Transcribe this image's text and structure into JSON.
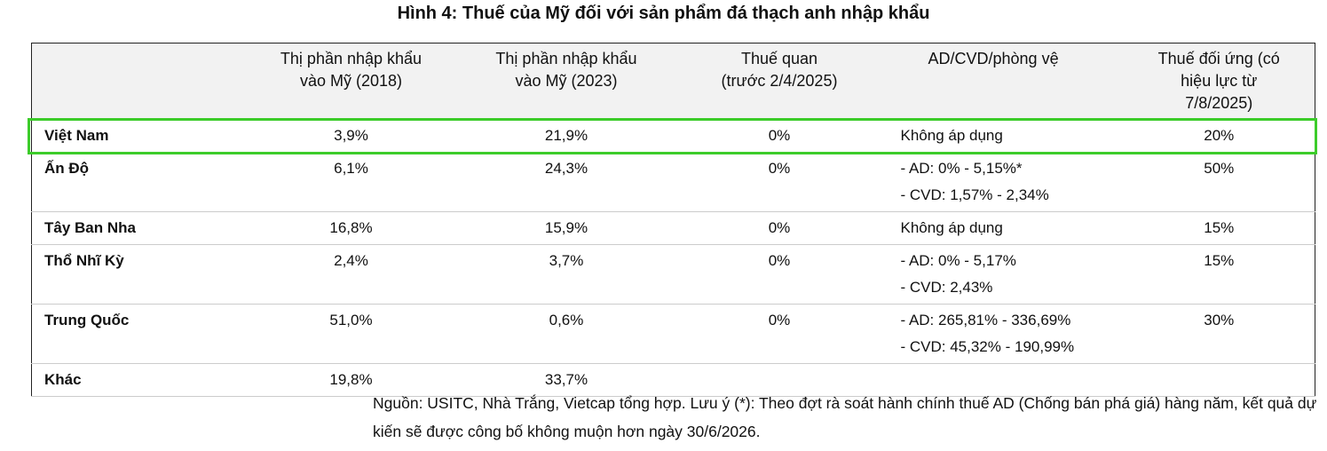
{
  "title": "Hình 4: Thuế của Mỹ đối với sản phẩm đá thạch anh nhập khẩu",
  "table": {
    "columns": [
      [
        "Thị phần nhập khẩu",
        "vào Mỹ (2018)"
      ],
      [
        "Thị phần nhập khẩu",
        "vào Mỹ (2023)"
      ],
      [
        "Thuế quan",
        "(trước 2/4/2025)"
      ],
      [
        "AD/CVD/phòng vệ"
      ],
      [
        "Thuế đối ứng (có",
        "hiệu lực từ",
        "7/8/2025)"
      ]
    ],
    "rows": [
      {
        "country": "Việt Nam",
        "share_2018": "3,9%",
        "share_2023": "21,9%",
        "tariff": "0%",
        "ad_cvd": [
          "Không áp dụng"
        ],
        "reciprocal": "20%",
        "highlighted": true
      },
      {
        "country": "Ấn Độ",
        "share_2018": "6,1%",
        "share_2023": "24,3%",
        "tariff": "0%",
        "ad_cvd": [
          "- AD: 0% - 5,15%*",
          "- CVD: 1,57% - 2,34%"
        ],
        "reciprocal": "50%"
      },
      {
        "country": "Tây Ban Nha",
        "share_2018": "16,8%",
        "share_2023": "15,9%",
        "tariff": "0%",
        "ad_cvd": [
          "Không áp dụng"
        ],
        "reciprocal": "15%"
      },
      {
        "country": "Thổ Nhĩ Kỳ",
        "share_2018": "2,4%",
        "share_2023": "3,7%",
        "tariff": "0%",
        "ad_cvd": [
          "- AD: 0% - 5,17%",
          "- CVD: 2,43%"
        ],
        "reciprocal": "15%"
      },
      {
        "country": "Trung Quốc",
        "share_2018": "51,0%",
        "share_2023": "0,6%",
        "tariff": "0%",
        "ad_cvd": [
          "- AD: 265,81% - 336,69%",
          "- CVD: 45,32% - 190,99%"
        ],
        "reciprocal": "30%"
      },
      {
        "country": "Khác",
        "share_2018": "19,8%",
        "share_2023": "33,7%"
      }
    ]
  },
  "note": "Nguồn: USITC, Nhà Trắng, Vietcap tổng hợp. Lưu ý (*): Theo đợt rà soát hành chính thuế AD (Chống bán phá giá) hàng năm, kết quả dự kiến sẽ được công bố không muộn hơn ngày 30/6/2026."
}
